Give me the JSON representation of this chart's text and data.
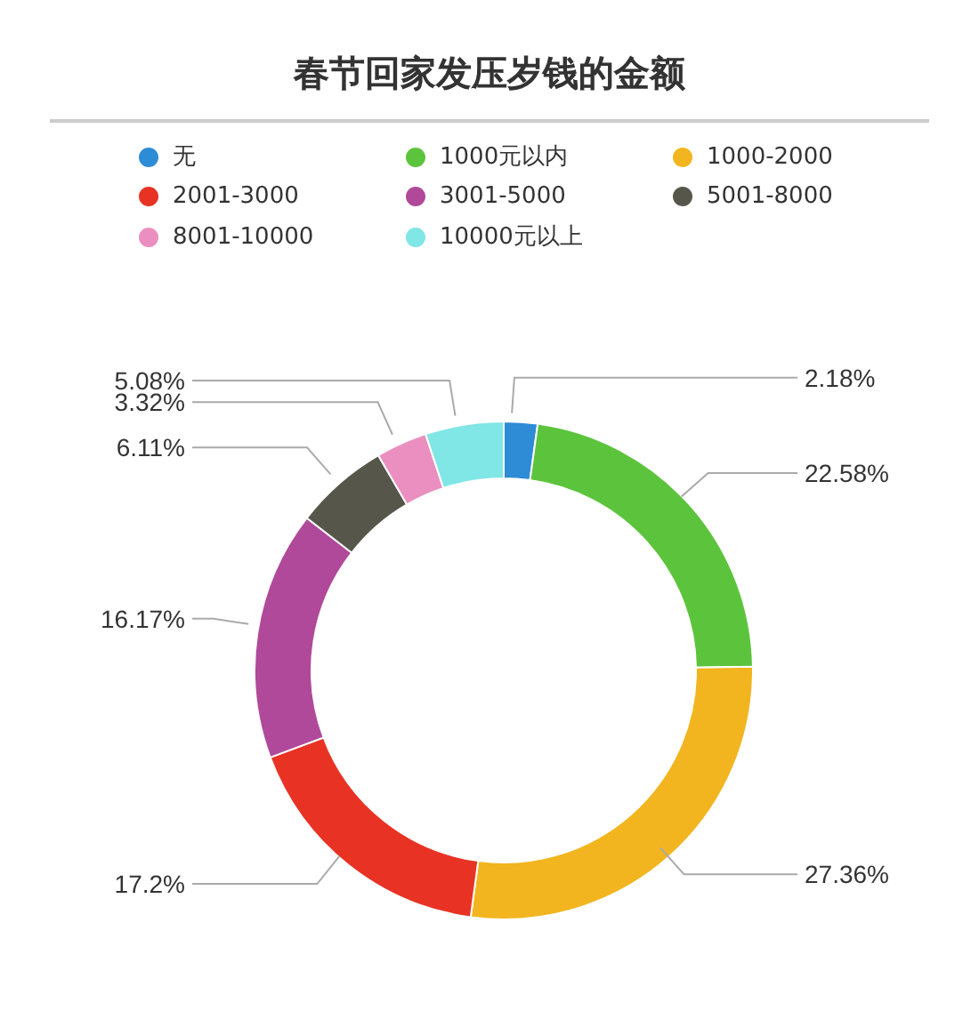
{
  "chart_data": {
    "type": "donut",
    "title": "春节回家发压岁钱的金额",
    "categories": [
      "无",
      "1000元以内",
      "1000-2000",
      "2001-3000",
      "3001-5000",
      "5001-8000",
      "8001-10000",
      "10000元以上"
    ],
    "values": [
      2.18,
      22.58,
      27.36,
      17.2,
      16.17,
      6.11,
      3.32,
      5.08
    ],
    "colors": [
      "#2e8bd6",
      "#5cc43c",
      "#f2b51f",
      "#e83324",
      "#b0499a",
      "#56574a",
      "#ea8fc0",
      "#80e6e6"
    ],
    "value_labels": [
      "2.18%",
      "22.58%",
      "27.36%",
      "17.2%",
      "16.17%",
      "6.11%",
      "3.32%",
      "5.08%"
    ],
    "legend": "top"
  }
}
